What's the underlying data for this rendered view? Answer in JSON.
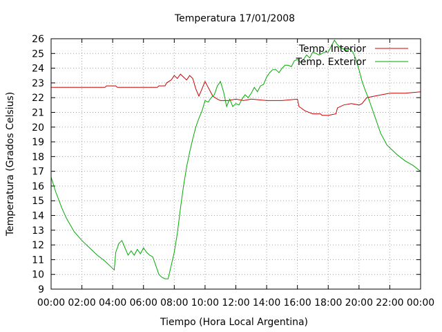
{
  "chart_data": {
    "type": "line",
    "title": "Temperatura 17/01/2008",
    "xlabel": "Tiempo (Hora Local Argentina)",
    "ylabel": "Temperatura (Grados Celsius)",
    "xlim": [
      0,
      24
    ],
    "ylim": [
      9,
      26
    ],
    "grid": true,
    "legend_position": "top-right",
    "x_tick_labels": [
      "00:00",
      "02:00",
      "04:00",
      "06:00",
      "08:00",
      "10:00",
      "12:00",
      "14:00",
      "16:00",
      "18:00",
      "20:00",
      "22:00",
      "00:00"
    ],
    "y_ticks": [
      9,
      10,
      11,
      12,
      13,
      14,
      15,
      16,
      17,
      18,
      19,
      20,
      21,
      22,
      23,
      24,
      25,
      26
    ],
    "series": [
      {
        "name": "Temp. Interior",
        "color": "#cc0000",
        "x": [
          0,
          3.5,
          3.6,
          4.2,
          4.3,
          6.9,
          7.0,
          7.4,
          7.5,
          7.8,
          8.0,
          8.2,
          8.4,
          8.6,
          8.8,
          9.0,
          9.2,
          9.4,
          9.6,
          9.8,
          10.0,
          10.2,
          10.5,
          10.8,
          11.0,
          11.5,
          12.0,
          12.5,
          13.0,
          14.0,
          15.0,
          16.0,
          16.1,
          16.5,
          17.0,
          17.5,
          17.6,
          18.0,
          18.5,
          18.6,
          19.0,
          19.5,
          20.0,
          20.2,
          20.5,
          21.0,
          21.5,
          22.0,
          23.0,
          24.0
        ],
        "y": [
          22.7,
          22.7,
          22.8,
          22.8,
          22.7,
          22.7,
          22.8,
          22.8,
          23.0,
          23.2,
          23.5,
          23.3,
          23.6,
          23.4,
          23.2,
          23.5,
          23.3,
          22.6,
          22.1,
          22.6,
          23.1,
          22.7,
          22.1,
          21.9,
          21.8,
          21.8,
          21.9,
          21.8,
          21.9,
          21.8,
          21.8,
          21.9,
          21.4,
          21.1,
          20.9,
          20.9,
          20.8,
          20.8,
          20.9,
          21.3,
          21.5,
          21.6,
          21.5,
          21.6,
          22.0,
          22.1,
          22.2,
          22.3,
          22.3,
          22.4
        ]
      },
      {
        "name": "Temp. Exterior",
        "color": "#00aa00",
        "x": [
          0,
          0.3,
          0.7,
          1.0,
          1.5,
          2.0,
          2.5,
          3.0,
          3.5,
          4.0,
          4.1,
          4.2,
          4.4,
          4.6,
          4.8,
          5.0,
          5.2,
          5.4,
          5.6,
          5.8,
          6.0,
          6.2,
          6.4,
          6.6,
          6.8,
          7.0,
          7.2,
          7.4,
          7.6,
          7.8,
          8.0,
          8.2,
          8.4,
          8.6,
          8.8,
          9.0,
          9.2,
          9.4,
          9.6,
          9.8,
          10.0,
          10.2,
          10.4,
          10.6,
          10.8,
          11.0,
          11.2,
          11.4,
          11.6,
          11.8,
          12.0,
          12.2,
          12.4,
          12.6,
          12.8,
          13.0,
          13.2,
          13.4,
          13.6,
          13.8,
          14.0,
          14.2,
          14.4,
          14.6,
          14.8,
          15.0,
          15.2,
          15.4,
          15.6,
          15.8,
          16.0,
          16.2,
          16.4,
          16.6,
          16.8,
          17.0,
          17.2,
          17.4,
          17.6,
          17.8,
          18.0,
          18.2,
          18.4,
          18.6,
          18.8,
          19.0,
          19.2,
          19.4,
          19.6,
          19.8,
          20.0,
          20.2,
          20.4,
          20.6,
          20.8,
          21.0,
          21.2,
          21.4,
          21.6,
          21.8,
          22.0,
          22.5,
          23.0,
          23.5,
          24.0
        ],
        "y": [
          16.6,
          15.6,
          14.5,
          13.8,
          12.9,
          12.3,
          11.8,
          11.3,
          10.9,
          10.4,
          10.3,
          11.5,
          12.1,
          12.3,
          11.8,
          11.3,
          11.6,
          11.3,
          11.7,
          11.4,
          11.8,
          11.5,
          11.3,
          11.2,
          10.6,
          10.0,
          9.8,
          9.7,
          9.7,
          10.6,
          11.5,
          12.8,
          14.5,
          16.0,
          17.3,
          18.3,
          19.2,
          20.0,
          20.6,
          21.1,
          21.8,
          21.7,
          22.0,
          22.2,
          22.8,
          23.1,
          22.4,
          21.4,
          21.9,
          21.4,
          21.6,
          21.5,
          21.9,
          22.2,
          22.0,
          22.3,
          22.7,
          22.4,
          22.8,
          22.9,
          23.4,
          23.7,
          23.9,
          23.9,
          23.7,
          24.0,
          24.2,
          24.2,
          24.1,
          24.5,
          24.6,
          24.4,
          24.6,
          24.9,
          24.7,
          25.1,
          25.0,
          24.9,
          25.0,
          25.1,
          25.1,
          25.5,
          25.9,
          25.6,
          25.4,
          25.3,
          25.2,
          25.3,
          25.1,
          24.6,
          23.9,
          23.1,
          22.5,
          22.0,
          21.4,
          20.8,
          20.2,
          19.6,
          19.2,
          18.8,
          18.6,
          18.1,
          17.7,
          17.4,
          17.0
        ]
      }
    ]
  }
}
